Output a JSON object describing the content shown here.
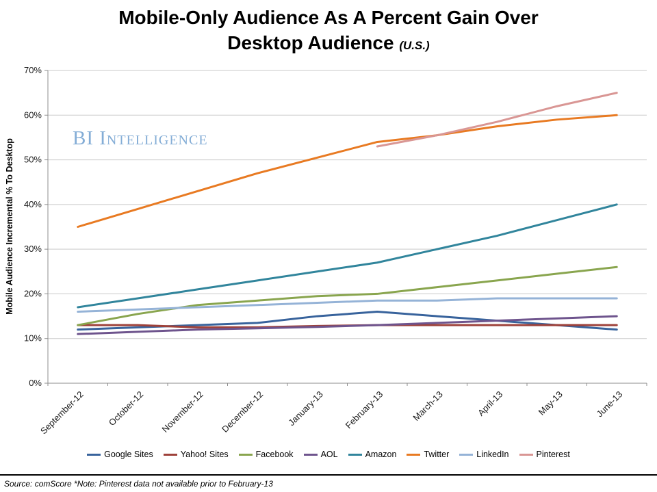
{
  "title": {
    "line1": "Mobile-Only Audience As A Percent Gain Over",
    "line2": "Desktop Audience",
    "suffix": "(U.S.)"
  },
  "watermark": "BI Intelligence",
  "footer": "Source: comScore *Note: Pinterest data not available prior to February-13",
  "chart_data": {
    "type": "line",
    "title": "Mobile-Only Audience As A Percent Gain Over Desktop Audience (U.S.)",
    "ylabel": "Mobile Audience Incremental % To Desktop",
    "xlabel": "",
    "ylim": [
      0,
      70
    ],
    "ytick_step": 10,
    "ytick_format": "percent",
    "grid": true,
    "legend_position": "bottom",
    "categories": [
      "September-12",
      "October-12",
      "November-12",
      "December-12",
      "January-13",
      "February-13",
      "March-13",
      "April-13",
      "May-13",
      "June-13"
    ],
    "series": [
      {
        "name": "Google Sites",
        "color": "#38639C",
        "values": [
          12,
          12.5,
          13,
          13.5,
          15,
          16,
          15,
          14,
          13,
          12
        ]
      },
      {
        "name": "Yahoo! Sites",
        "color": "#9E413A",
        "values": [
          13,
          13,
          12.5,
          12.5,
          12.8,
          13,
          13,
          13,
          13,
          13
        ]
      },
      {
        "name": "Facebook",
        "color": "#89A54E",
        "values": [
          13,
          15.5,
          17.5,
          18.5,
          19.5,
          20,
          21.5,
          23,
          24.5,
          26
        ]
      },
      {
        "name": "AOL",
        "color": "#6E548D",
        "values": [
          11,
          11.5,
          12,
          12.3,
          12.6,
          13,
          13.5,
          14,
          14.5,
          15
        ]
      },
      {
        "name": "Amazon",
        "color": "#31859C",
        "values": [
          17,
          19,
          21,
          23,
          25,
          27,
          30,
          33,
          36.5,
          40
        ]
      },
      {
        "name": "Twitter",
        "color": "#E87A22",
        "values": [
          35,
          39,
          43,
          47,
          50.5,
          54,
          55.5,
          57.5,
          59,
          60
        ]
      },
      {
        "name": "LinkedIn",
        "color": "#95B3D7",
        "values": [
          16,
          16.5,
          17,
          17.5,
          18,
          18.5,
          18.5,
          19,
          19,
          19
        ]
      },
      {
        "name": "Pinterest",
        "color": "#D99694",
        "values": [
          null,
          null,
          null,
          null,
          null,
          53,
          55.5,
          58.5,
          62,
          65
        ]
      }
    ]
  }
}
